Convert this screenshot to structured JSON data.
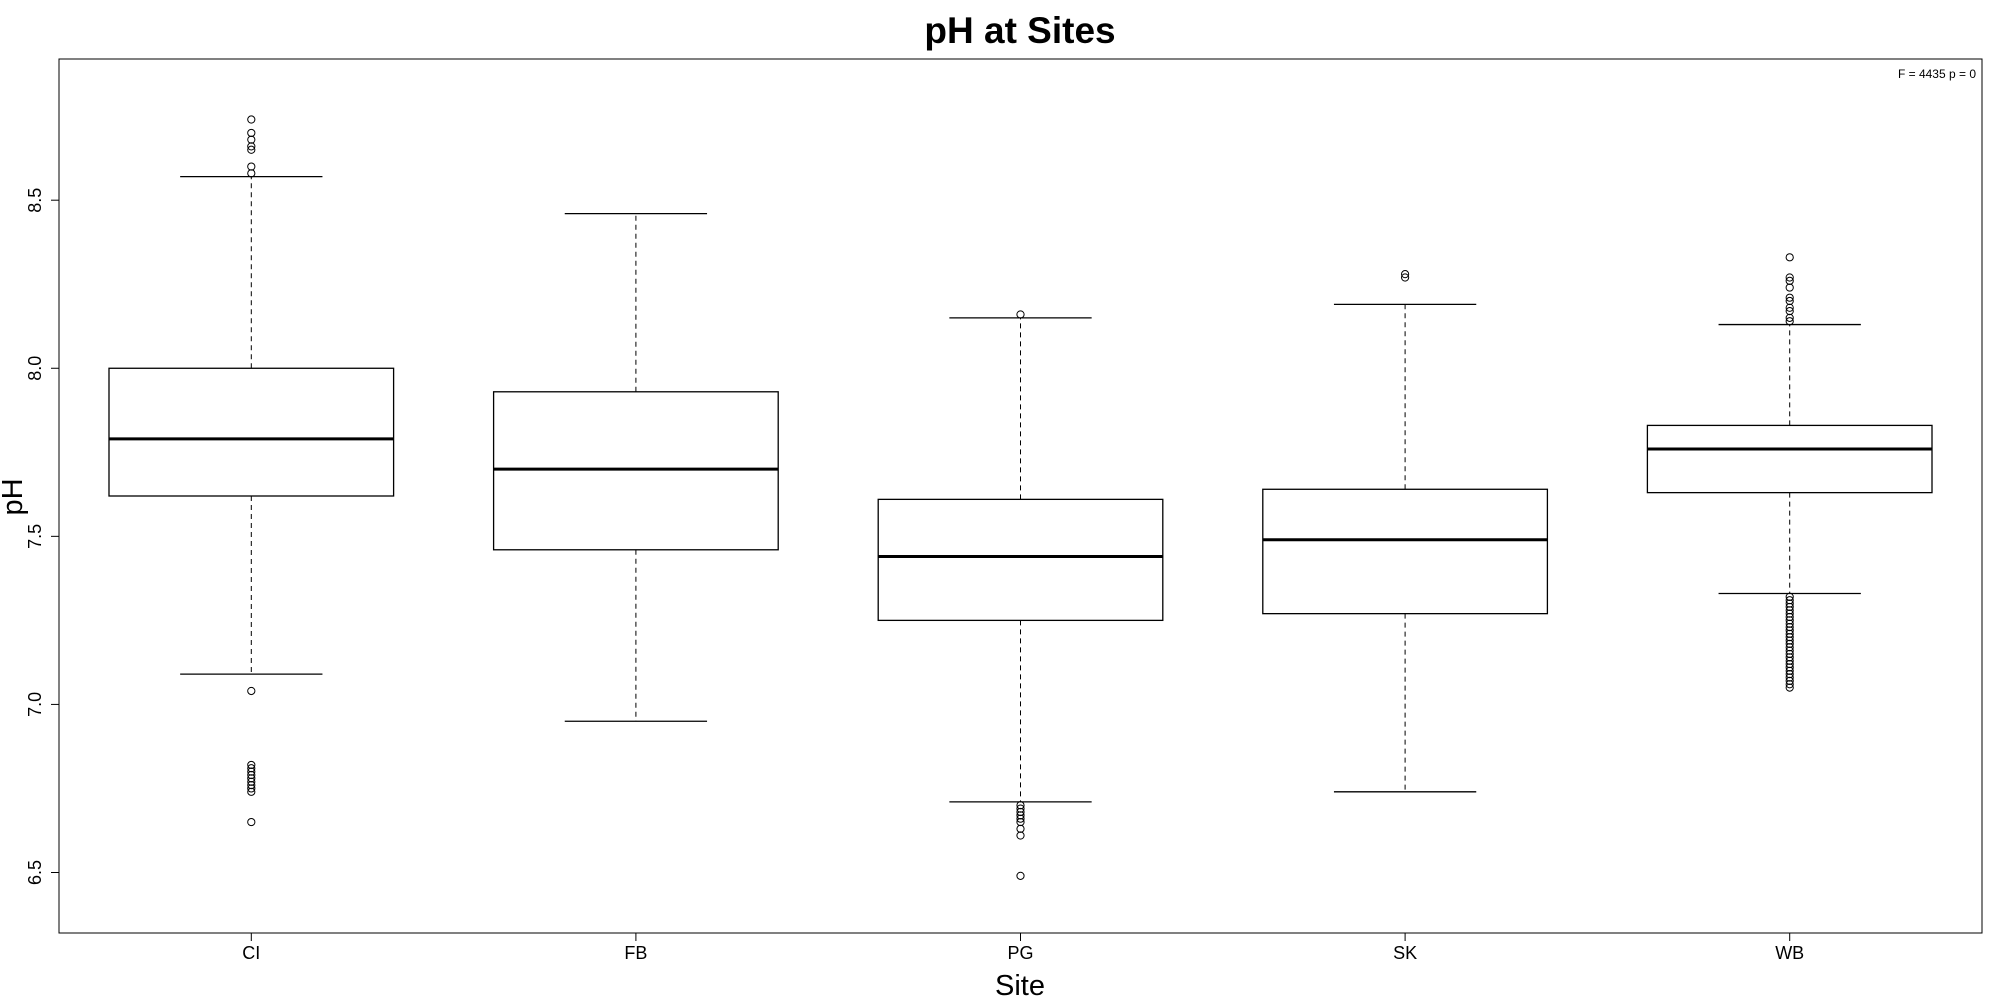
{
  "chart_data": {
    "type": "boxplot",
    "title": "pH at Sites",
    "xlabel": "Site",
    "ylabel": "pH",
    "annotation": "F = 4435 p = 0",
    "ylim": [
      6.32,
      8.92
    ],
    "yticks": [
      6.5,
      7.0,
      7.5,
      8.0,
      8.5
    ],
    "ytick_labels": [
      "6.5",
      "7.0",
      "7.5",
      "8.0",
      "8.5"
    ],
    "categories": [
      "CI",
      "FB",
      "PG",
      "SK",
      "WB"
    ],
    "boxes": [
      {
        "name": "CI",
        "whisker_low": 7.09,
        "q1": 7.62,
        "median": 7.79,
        "q3": 8.0,
        "whisker_high": 8.57,
        "outliers": [
          8.74,
          8.7,
          8.68,
          8.66,
          8.65,
          8.6,
          8.58,
          7.04,
          6.82,
          6.81,
          6.8,
          6.79,
          6.78,
          6.77,
          6.76,
          6.75,
          6.74,
          6.65
        ]
      },
      {
        "name": "FB",
        "whisker_low": 6.95,
        "q1": 7.46,
        "median": 7.7,
        "q3": 7.93,
        "whisker_high": 8.46,
        "outliers": []
      },
      {
        "name": "PG",
        "whisker_low": 6.71,
        "q1": 7.25,
        "median": 7.44,
        "q3": 7.61,
        "whisker_high": 8.15,
        "outliers": [
          8.16,
          6.7,
          6.69,
          6.68,
          6.67,
          6.66,
          6.65,
          6.63,
          6.61,
          6.49
        ]
      },
      {
        "name": "SK",
        "whisker_low": 6.74,
        "q1": 7.27,
        "median": 7.49,
        "q3": 7.64,
        "whisker_high": 8.19,
        "outliers": [
          8.28,
          8.27
        ]
      },
      {
        "name": "WB",
        "whisker_low": 7.33,
        "q1": 7.63,
        "median": 7.76,
        "q3": 7.83,
        "whisker_high": 8.13,
        "outliers": [
          8.33,
          8.27,
          8.26,
          8.24,
          8.21,
          8.2,
          8.18,
          8.17,
          8.15,
          8.14,
          7.32,
          7.31,
          7.3,
          7.29,
          7.28,
          7.27,
          7.26,
          7.25,
          7.24,
          7.23,
          7.22,
          7.21,
          7.2,
          7.19,
          7.18,
          7.17,
          7.16,
          7.15,
          7.14,
          7.13,
          7.12,
          7.11,
          7.1,
          7.09,
          7.08,
          7.07,
          7.06,
          7.05
        ]
      }
    ],
    "grid": false,
    "legend": "none"
  }
}
